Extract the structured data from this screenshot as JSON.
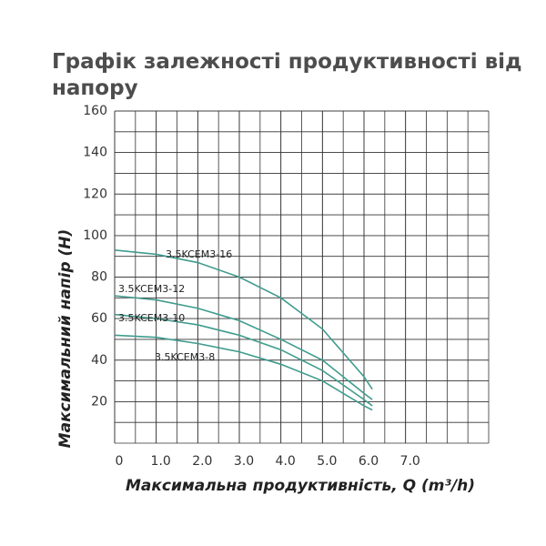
{
  "chart_data": {
    "type": "line",
    "title": "Графік залежності продуктивності від напору",
    "x_label": "Максимальна продуктивність, Q (m³/h)",
    "y_label": "Максимальний напір (Н)",
    "x": [
      0,
      1,
      2,
      3,
      4,
      5,
      6,
      6.2
    ],
    "series": [
      {
        "name": "3.5KCEM3-16",
        "color": "#3f9c8e",
        "values": [
          93,
          91,
          87,
          80,
          70,
          55,
          32,
          26
        ]
      },
      {
        "name": "3.5KCEM3-12",
        "color": "#3f9c8e",
        "values": [
          71,
          69,
          65,
          59,
          50,
          40,
          24,
          21
        ]
      },
      {
        "name": "3.5KCEM3-10",
        "color": "#3f9c8e",
        "values": [
          62,
          60,
          57,
          52,
          45,
          35,
          21,
          18
        ]
      },
      {
        "name": "3.5KCEM3-8",
        "color": "#3f9c8e",
        "values": [
          52,
          51,
          48,
          44,
          38,
          30,
          18,
          16
        ]
      }
    ],
    "xlim": [
      0,
      9
    ],
    "ylim": [
      0,
      160
    ],
    "xticks": [
      0,
      {
        "value": 1,
        "label": "1.0"
      },
      {
        "value": 2,
        "label": "2.0"
      },
      {
        "value": 3,
        "label": "3.0"
      },
      {
        "value": 4,
        "label": "4.0"
      },
      {
        "value": 5,
        "label": "5.0"
      },
      {
        "value": 6,
        "label": "6.0"
      },
      {
        "value": 7,
        "label": "7.0"
      }
    ],
    "yticks": [
      20,
      40,
      60,
      80,
      100,
      120,
      140,
      160
    ],
    "grid": true
  }
}
